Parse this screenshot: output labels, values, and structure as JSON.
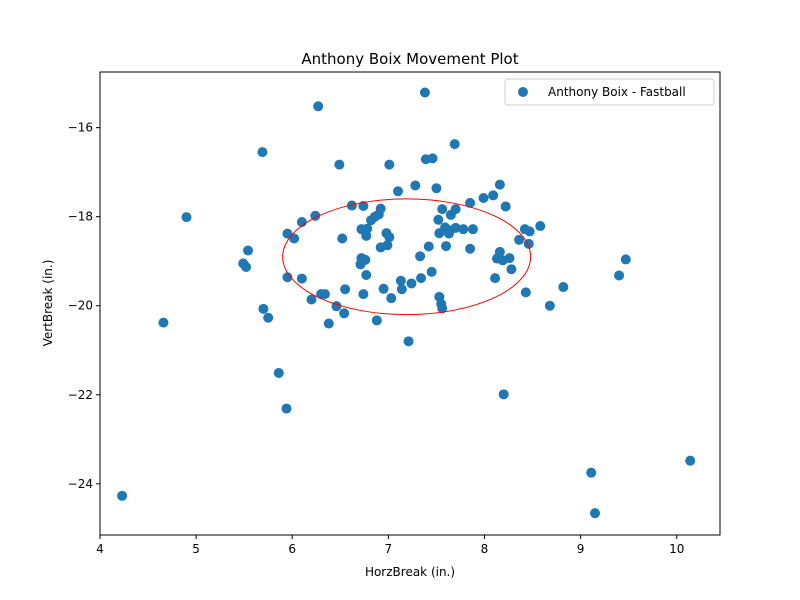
{
  "chart_data": {
    "type": "scatter",
    "title": "Anthony Boix Movement Plot",
    "xlabel": "HorzBreak (in.)",
    "ylabel": "VertBreak (in.)",
    "xlim": [
      4.0,
      10.45
    ],
    "ylim": [
      -25.15,
      -14.75
    ],
    "y_inverted": true,
    "xticks": [
      4,
      5,
      6,
      7,
      8,
      9,
      10
    ],
    "yticks": [
      -16,
      -18,
      -20,
      -22,
      -24
    ],
    "xtick_labels": [
      "4",
      "5",
      "6",
      "7",
      "8",
      "9",
      "10"
    ],
    "ytick_labels": [
      "−16",
      "−18",
      "−20",
      "−22",
      "−24"
    ],
    "grid": false,
    "legend_position": "top-right",
    "colors": {
      "series": "#1f77b4",
      "ellipse": "#ff0000"
    },
    "series": [
      {
        "name": "Anthony Boix - Fastball",
        "points": [
          [
            6.27,
            -15.52
          ],
          [
            7.38,
            -15.21
          ],
          [
            7.69,
            -16.37
          ],
          [
            5.69,
            -16.55
          ],
          [
            6.49,
            -16.83
          ],
          [
            7.01,
            -16.83
          ],
          [
            7.39,
            -16.71
          ],
          [
            7.46,
            -16.69
          ],
          [
            8.16,
            -17.28
          ],
          [
            7.28,
            -17.3
          ],
          [
            7.1,
            -17.43
          ],
          [
            7.5,
            -17.36
          ],
          [
            8.09,
            -17.52
          ],
          [
            7.99,
            -17.58
          ],
          [
            7.85,
            -17.69
          ],
          [
            8.22,
            -17.77
          ],
          [
            6.62,
            -17.75
          ],
          [
            6.74,
            -17.76
          ],
          [
            6.92,
            -17.82
          ],
          [
            7.56,
            -17.83
          ],
          [
            7.7,
            -17.83
          ],
          [
            4.9,
            -18.01
          ],
          [
            6.24,
            -17.98
          ],
          [
            6.86,
            -18.0
          ],
          [
            6.9,
            -17.95
          ],
          [
            6.82,
            -18.08
          ],
          [
            7.52,
            -18.07
          ],
          [
            7.65,
            -17.96
          ],
          [
            6.1,
            -18.12
          ],
          [
            6.72,
            -18.28
          ],
          [
            6.78,
            -18.27
          ],
          [
            7.59,
            -18.24
          ],
          [
            7.64,
            -18.31
          ],
          [
            7.7,
            -18.25
          ],
          [
            7.78,
            -18.28
          ],
          [
            7.88,
            -18.28
          ],
          [
            8.42,
            -18.28
          ],
          [
            8.47,
            -18.33
          ],
          [
            8.58,
            -18.21
          ],
          [
            5.95,
            -18.38
          ],
          [
            6.02,
            -18.49
          ],
          [
            6.52,
            -18.49
          ],
          [
            6.77,
            -18.43
          ],
          [
            6.98,
            -18.37
          ],
          [
            7.01,
            -18.46
          ],
          [
            7.53,
            -18.37
          ],
          [
            7.63,
            -18.38
          ],
          [
            8.36,
            -18.52
          ],
          [
            8.46,
            -18.61
          ],
          [
            5.54,
            -18.76
          ],
          [
            6.92,
            -18.69
          ],
          [
            6.99,
            -18.64
          ],
          [
            7.42,
            -18.67
          ],
          [
            7.6,
            -18.66
          ],
          [
            7.85,
            -18.72
          ],
          [
            8.16,
            -18.79
          ],
          [
            6.72,
            -18.93
          ],
          [
            6.76,
            -18.97
          ],
          [
            7.33,
            -18.89
          ],
          [
            8.13,
            -18.94
          ],
          [
            8.19,
            -18.98
          ],
          [
            8.26,
            -18.93
          ],
          [
            5.49,
            -19.05
          ],
          [
            5.52,
            -19.13
          ],
          [
            6.71,
            -19.07
          ],
          [
            8.28,
            -19.18
          ],
          [
            9.47,
            -18.96
          ],
          [
            6.77,
            -19.31
          ],
          [
            7.45,
            -19.24
          ],
          [
            5.95,
            -19.36
          ],
          [
            6.1,
            -19.39
          ],
          [
            7.13,
            -19.44
          ],
          [
            7.24,
            -19.5
          ],
          [
            7.34,
            -19.38
          ],
          [
            8.11,
            -19.38
          ],
          [
            9.4,
            -19.32
          ],
          [
            6.95,
            -19.62
          ],
          [
            7.14,
            -19.63
          ],
          [
            8.82,
            -19.58
          ],
          [
            6.3,
            -19.74
          ],
          [
            6.34,
            -19.74
          ],
          [
            6.55,
            -19.63
          ],
          [
            6.74,
            -19.74
          ],
          [
            8.43,
            -19.7
          ],
          [
            6.2,
            -19.86
          ],
          [
            7.03,
            -19.83
          ],
          [
            7.53,
            -19.8
          ],
          [
            7.55,
            -19.96
          ],
          [
            7.56,
            -20.06
          ],
          [
            6.46,
            -20.01
          ],
          [
            8.68,
            -20.0
          ],
          [
            5.7,
            -20.07
          ],
          [
            6.54,
            -20.17
          ],
          [
            5.75,
            -20.27
          ],
          [
            6.88,
            -20.33
          ],
          [
            4.66,
            -20.38
          ],
          [
            6.38,
            -20.4
          ],
          [
            7.21,
            -20.8
          ],
          [
            5.86,
            -21.51
          ],
          [
            8.2,
            -21.99
          ],
          [
            5.94,
            -22.31
          ],
          [
            9.11,
            -23.75
          ],
          [
            10.14,
            -23.48
          ],
          [
            4.23,
            -24.27
          ],
          [
            9.15,
            -24.66
          ]
        ]
      }
    ],
    "ellipse": {
      "center": [
        7.19,
        -18.9
      ],
      "radius_x": 1.29,
      "radius_y": 1.3
    }
  }
}
